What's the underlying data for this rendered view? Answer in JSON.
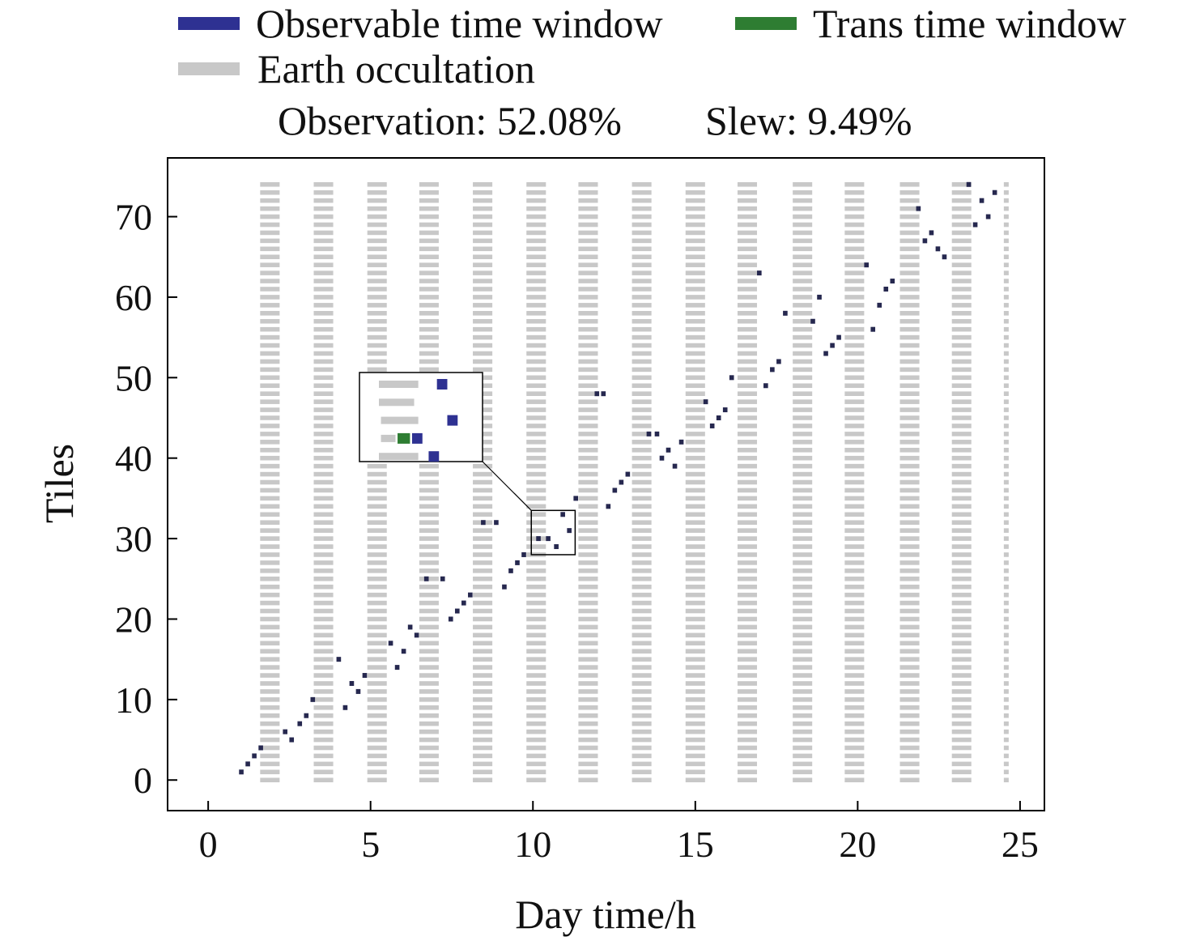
{
  "chart_data": {
    "type": "timeline",
    "legend": [
      {
        "name": "Observable time window",
        "color": "#2e3192"
      },
      {
        "name": "Trans time window",
        "color": "#2e7d32"
      },
      {
        "name": "Earth occultation",
        "color": "#c8c8c8"
      }
    ],
    "legend_placement": "top",
    "stats": [
      "Observation: 52.08%",
      "Slew: 9.49%"
    ],
    "xlabel": "Day time/h",
    "ylabel": "Tiles",
    "xlim": [
      -1.25,
      25.75
    ],
    "ylim": [
      -3.8,
      77.3
    ],
    "xticks": [
      0,
      5,
      10,
      15,
      20,
      25
    ],
    "yticks": [
      0,
      10,
      20,
      30,
      40,
      50,
      60,
      70
    ],
    "grid": false,
    "occultation": {
      "tiles": [
        0,
        74
      ],
      "starts": [
        1.6,
        3.25,
        4.9,
        6.5,
        8.15,
        9.8,
        11.4,
        13.05,
        14.7,
        16.3,
        18.0,
        19.6,
        21.3,
        22.9,
        24.5
      ],
      "duration": 0.6
    },
    "observations": [
      {
        "t": 0.95,
        "tile": 1
      },
      {
        "t": 1.15,
        "tile": 2
      },
      {
        "t": 1.35,
        "tile": 3
      },
      {
        "t": 1.55,
        "tile": 4
      },
      {
        "t": 2.3,
        "tile": 6
      },
      {
        "t": 2.5,
        "tile": 5
      },
      {
        "t": 2.75,
        "tile": 7
      },
      {
        "t": 2.95,
        "tile": 8
      },
      {
        "t": 3.15,
        "tile": 10
      },
      {
        "t": 3.95,
        "tile": 15
      },
      {
        "t": 4.15,
        "tile": 9
      },
      {
        "t": 4.35,
        "tile": 12
      },
      {
        "t": 4.55,
        "tile": 11
      },
      {
        "t": 4.75,
        "tile": 13
      },
      {
        "t": 5.55,
        "tile": 17
      },
      {
        "t": 5.75,
        "tile": 14
      },
      {
        "t": 5.95,
        "tile": 16
      },
      {
        "t": 6.15,
        "tile": 19
      },
      {
        "t": 6.35,
        "tile": 18
      },
      {
        "t": 6.65,
        "tile": 25
      },
      {
        "t": 7.15,
        "tile": 25
      },
      {
        "t": 7.4,
        "tile": 20
      },
      {
        "t": 7.6,
        "tile": 21
      },
      {
        "t": 7.8,
        "tile": 22
      },
      {
        "t": 8.0,
        "tile": 23
      },
      {
        "t": 8.4,
        "tile": 32
      },
      {
        "t": 8.8,
        "tile": 32
      },
      {
        "t": 9.05,
        "tile": 24
      },
      {
        "t": 9.25,
        "tile": 26
      },
      {
        "t": 9.45,
        "tile": 27
      },
      {
        "t": 9.65,
        "tile": 28
      },
      {
        "t": 10.1,
        "tile": 30
      },
      {
        "t": 10.4,
        "tile": 30
      },
      {
        "t": 10.65,
        "tile": 29
      },
      {
        "t": 10.85,
        "tile": 33
      },
      {
        "t": 11.05,
        "tile": 31
      },
      {
        "t": 11.25,
        "tile": 35
      },
      {
        "t": 11.9,
        "tile": 48
      },
      {
        "t": 12.1,
        "tile": 48
      },
      {
        "t": 12.25,
        "tile": 34
      },
      {
        "t": 12.45,
        "tile": 36
      },
      {
        "t": 12.65,
        "tile": 37
      },
      {
        "t": 12.85,
        "tile": 38
      },
      {
        "t": 13.5,
        "tile": 43
      },
      {
        "t": 13.75,
        "tile": 43
      },
      {
        "t": 13.9,
        "tile": 40
      },
      {
        "t": 14.1,
        "tile": 41
      },
      {
        "t": 14.3,
        "tile": 39
      },
      {
        "t": 14.5,
        "tile": 42
      },
      {
        "t": 15.25,
        "tile": 47
      },
      {
        "t": 15.45,
        "tile": 44
      },
      {
        "t": 15.65,
        "tile": 45
      },
      {
        "t": 15.85,
        "tile": 46
      },
      {
        "t": 16.05,
        "tile": 50
      },
      {
        "t": 16.9,
        "tile": 63
      },
      {
        "t": 17.1,
        "tile": 49
      },
      {
        "t": 17.3,
        "tile": 51
      },
      {
        "t": 17.5,
        "tile": 52
      },
      {
        "t": 17.7,
        "tile": 58
      },
      {
        "t": 18.55,
        "tile": 57
      },
      {
        "t": 18.75,
        "tile": 60
      },
      {
        "t": 18.95,
        "tile": 53
      },
      {
        "t": 19.15,
        "tile": 54
      },
      {
        "t": 19.35,
        "tile": 55
      },
      {
        "t": 20.2,
        "tile": 64
      },
      {
        "t": 20.4,
        "tile": 56
      },
      {
        "t": 20.6,
        "tile": 59
      },
      {
        "t": 20.8,
        "tile": 61
      },
      {
        "t": 21.0,
        "tile": 62
      },
      {
        "t": 21.8,
        "tile": 71
      },
      {
        "t": 22.0,
        "tile": 67
      },
      {
        "t": 22.2,
        "tile": 68
      },
      {
        "t": 22.4,
        "tile": 66
      },
      {
        "t": 22.6,
        "tile": 65
      },
      {
        "t": 23.35,
        "tile": 74
      },
      {
        "t": 23.55,
        "tile": 69
      },
      {
        "t": 23.75,
        "tile": 72
      },
      {
        "t": 23.95,
        "tile": 70
      },
      {
        "t": 24.15,
        "tile": 73
      }
    ],
    "observation_duration": 0.14,
    "inset": {
      "region_x": [
        9.95,
        11.3
      ],
      "region_y": [
        28.0,
        33.5
      ],
      "rows": [
        {
          "occultation": [
            0,
            0.38
          ],
          "observable": [
            0.56,
            0.66
          ]
        },
        {
          "occultation": [
            0,
            0.34
          ]
        },
        {
          "occultation": [
            0.02,
            0.38
          ],
          "observable": [
            0.66,
            0.76
          ]
        },
        {
          "occultation": [
            0.02,
            0.16
          ],
          "trans": [
            0.18,
            0.3
          ],
          "observable": [
            0.32,
            0.42
          ]
        },
        {
          "occultation": [
            0,
            0.38
          ],
          "observable": [
            0.48,
            0.58
          ]
        }
      ]
    }
  }
}
